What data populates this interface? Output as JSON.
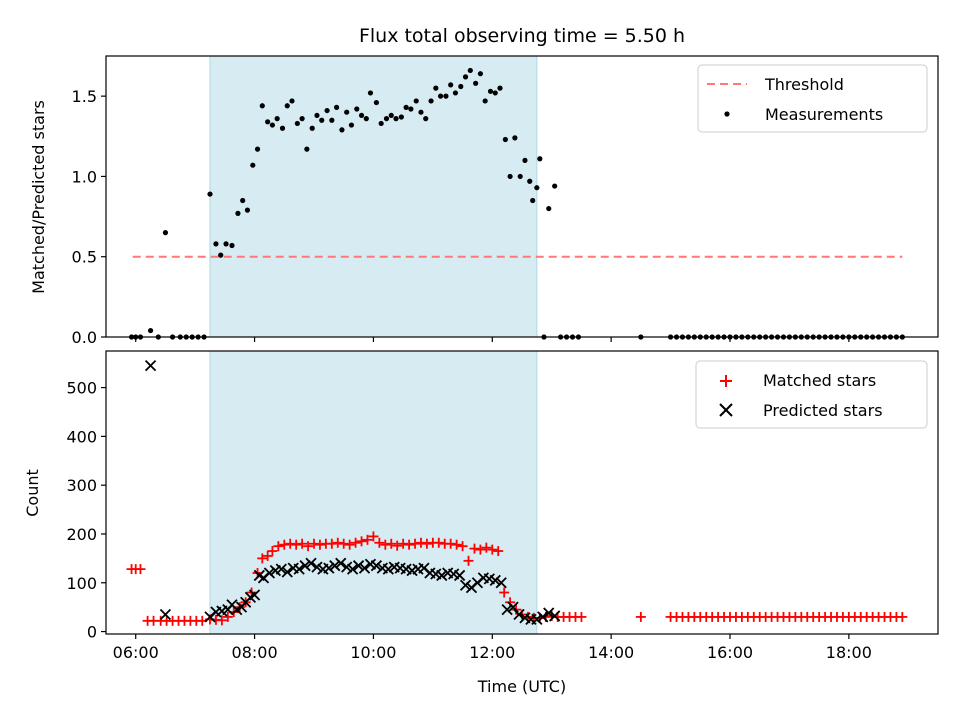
{
  "chart_data": {
    "type": "scatter",
    "title": "Flux total observing time = 5.50 h",
    "xlabel": "Time (UTC)",
    "x_range_hours": [
      5.5,
      19.5
    ],
    "x_ticks": [
      {
        "hour": 6,
        "label": "06:00"
      },
      {
        "hour": 8,
        "label": "08:00"
      },
      {
        "hour": 10,
        "label": "10:00"
      },
      {
        "hour": 12,
        "label": "12:00"
      },
      {
        "hour": 14,
        "label": "14:00"
      },
      {
        "hour": 16,
        "label": "16:00"
      },
      {
        "hour": 18,
        "label": "18:00"
      }
    ],
    "shaded_interval_hours": [
      7.25,
      12.75
    ],
    "shade_color": "#add8e6",
    "top": {
      "ylabel": "Matched/Predicted stars",
      "ylim": [
        0,
        1.75
      ],
      "y_ticks": [
        {
          "value": 0,
          "label": "0.0"
        },
        {
          "value": 0.5,
          "label": "0.5"
        },
        {
          "value": 1.0,
          "label": "1.0"
        },
        {
          "value": 1.5,
          "label": "1.5"
        }
      ],
      "threshold": {
        "name": "Threshold",
        "value": 0.5,
        "x_from_hours": 5.95,
        "x_to_hours": 18.9,
        "color": "#ff7777"
      },
      "measurements_name": "Measurements",
      "measurements_color": "#000000",
      "measurements": [
        [
          5.93,
          0
        ],
        [
          6.0,
          0
        ],
        [
          6.08,
          0
        ],
        [
          6.25,
          0.04
        ],
        [
          6.38,
          0
        ],
        [
          6.5,
          0.65
        ],
        [
          6.62,
          0
        ],
        [
          6.75,
          0
        ],
        [
          6.85,
          0
        ],
        [
          6.95,
          0
        ],
        [
          7.05,
          0
        ],
        [
          7.15,
          0
        ],
        [
          7.25,
          0.89
        ],
        [
          7.35,
          0.58
        ],
        [
          7.43,
          0.51
        ],
        [
          7.52,
          0.58
        ],
        [
          7.62,
          0.57
        ],
        [
          7.72,
          0.77
        ],
        [
          7.8,
          0.85
        ],
        [
          7.88,
          0.79
        ],
        [
          7.97,
          1.07
        ],
        [
          8.05,
          1.17
        ],
        [
          8.13,
          1.44
        ],
        [
          8.22,
          1.34
        ],
        [
          8.3,
          1.32
        ],
        [
          8.38,
          1.36
        ],
        [
          8.47,
          1.3
        ],
        [
          8.55,
          1.44
        ],
        [
          8.63,
          1.47
        ],
        [
          8.72,
          1.33
        ],
        [
          8.8,
          1.36
        ],
        [
          8.88,
          1.17
        ],
        [
          8.97,
          1.3
        ],
        [
          9.05,
          1.38
        ],
        [
          9.13,
          1.35
        ],
        [
          9.22,
          1.41
        ],
        [
          9.3,
          1.35
        ],
        [
          9.38,
          1.43
        ],
        [
          9.47,
          1.29
        ],
        [
          9.55,
          1.4
        ],
        [
          9.63,
          1.32
        ],
        [
          9.72,
          1.42
        ],
        [
          9.8,
          1.38
        ],
        [
          9.88,
          1.36
        ],
        [
          9.95,
          1.52
        ],
        [
          10.05,
          1.46
        ],
        [
          10.13,
          1.33
        ],
        [
          10.22,
          1.36
        ],
        [
          10.3,
          1.38
        ],
        [
          10.38,
          1.36
        ],
        [
          10.47,
          1.37
        ],
        [
          10.55,
          1.43
        ],
        [
          10.63,
          1.42
        ],
        [
          10.72,
          1.47
        ],
        [
          10.8,
          1.4
        ],
        [
          10.88,
          1.36
        ],
        [
          10.97,
          1.47
        ],
        [
          11.05,
          1.55
        ],
        [
          11.13,
          1.5
        ],
        [
          11.22,
          1.5
        ],
        [
          11.3,
          1.57
        ],
        [
          11.38,
          1.52
        ],
        [
          11.47,
          1.56
        ],
        [
          11.55,
          1.62
        ],
        [
          11.63,
          1.66
        ],
        [
          11.72,
          1.58
        ],
        [
          11.8,
          1.64
        ],
        [
          11.88,
          1.47
        ],
        [
          11.97,
          1.53
        ],
        [
          12.05,
          1.52
        ],
        [
          12.13,
          1.55
        ],
        [
          12.22,
          1.23
        ],
        [
          12.3,
          1.0
        ],
        [
          12.38,
          1.24
        ],
        [
          12.47,
          1.0
        ],
        [
          12.55,
          1.1
        ],
        [
          12.63,
          0.97
        ],
        [
          12.68,
          0.85
        ],
        [
          12.75,
          0.93
        ],
        [
          12.8,
          1.11
        ],
        [
          12.87,
          0
        ],
        [
          12.95,
          0.8
        ],
        [
          13.05,
          0.94
        ],
        [
          13.15,
          0
        ],
        [
          13.25,
          0
        ],
        [
          13.35,
          0
        ],
        [
          13.45,
          0
        ],
        [
          14.5,
          0
        ],
        [
          15.0,
          0
        ],
        [
          15.1,
          0
        ],
        [
          15.2,
          0
        ],
        [
          15.3,
          0
        ],
        [
          15.4,
          0
        ],
        [
          15.5,
          0
        ],
        [
          15.6,
          0
        ],
        [
          15.7,
          0
        ],
        [
          15.8,
          0
        ],
        [
          15.9,
          0
        ],
        [
          16.0,
          0
        ],
        [
          16.1,
          0
        ],
        [
          16.2,
          0
        ],
        [
          16.3,
          0
        ],
        [
          16.4,
          0
        ],
        [
          16.5,
          0
        ],
        [
          16.6,
          0
        ],
        [
          16.7,
          0
        ],
        [
          16.8,
          0
        ],
        [
          16.9,
          0
        ],
        [
          17.0,
          0
        ],
        [
          17.1,
          0
        ],
        [
          17.2,
          0
        ],
        [
          17.3,
          0
        ],
        [
          17.4,
          0
        ],
        [
          17.5,
          0
        ],
        [
          17.6,
          0
        ],
        [
          17.7,
          0
        ],
        [
          17.8,
          0
        ],
        [
          17.9,
          0
        ],
        [
          18.0,
          0
        ],
        [
          18.1,
          0
        ],
        [
          18.2,
          0
        ],
        [
          18.3,
          0
        ],
        [
          18.4,
          0
        ],
        [
          18.5,
          0
        ],
        [
          18.6,
          0
        ],
        [
          18.7,
          0
        ],
        [
          18.8,
          0
        ],
        [
          18.9,
          0
        ]
      ]
    },
    "bottom": {
      "ylabel": "Count",
      "ylim": [
        -5,
        575
      ],
      "y_ticks": [
        {
          "value": 0,
          "label": "0"
        },
        {
          "value": 100,
          "label": "100"
        },
        {
          "value": 200,
          "label": "200"
        },
        {
          "value": 300,
          "label": "300"
        },
        {
          "value": 400,
          "label": "400"
        },
        {
          "value": 500,
          "label": "500"
        }
      ],
      "matched_name": "Matched stars",
      "matched_color": "#ff0000",
      "predicted_name": "Predicted stars",
      "predicted_color": "#000000",
      "matched": [
        [
          5.93,
          128
        ],
        [
          6.0,
          128
        ],
        [
          6.08,
          128
        ],
        [
          6.2,
          22
        ],
        [
          6.3,
          22
        ],
        [
          6.42,
          22
        ],
        [
          6.52,
          22
        ],
        [
          6.62,
          22
        ],
        [
          6.72,
          22
        ],
        [
          6.82,
          22
        ],
        [
          6.92,
          22
        ],
        [
          7.02,
          22
        ],
        [
          7.12,
          22
        ],
        [
          7.25,
          25
        ],
        [
          7.35,
          24
        ],
        [
          7.45,
          23
        ],
        [
          7.55,
          30
        ],
        [
          7.65,
          40
        ],
        [
          7.75,
          50
        ],
        [
          7.85,
          60
        ],
        [
          7.95,
          80
        ],
        [
          8.05,
          120
        ],
        [
          8.13,
          150
        ],
        [
          8.22,
          155
        ],
        [
          8.3,
          165
        ],
        [
          8.4,
          175
        ],
        [
          8.5,
          178
        ],
        [
          8.6,
          180
        ],
        [
          8.7,
          178
        ],
        [
          8.8,
          180
        ],
        [
          8.9,
          175
        ],
        [
          9.0,
          180
        ],
        [
          9.1,
          178
        ],
        [
          9.2,
          180
        ],
        [
          9.3,
          180
        ],
        [
          9.4,
          182
        ],
        [
          9.5,
          180
        ],
        [
          9.6,
          178
        ],
        [
          9.7,
          182
        ],
        [
          9.8,
          185
        ],
        [
          9.9,
          188
        ],
        [
          10.0,
          195
        ],
        [
          10.1,
          182
        ],
        [
          10.2,
          178
        ],
        [
          10.3,
          180
        ],
        [
          10.4,
          176
        ],
        [
          10.5,
          180
        ],
        [
          10.6,
          178
        ],
        [
          10.7,
          180
        ],
        [
          10.8,
          182
        ],
        [
          10.9,
          180
        ],
        [
          11.0,
          182
        ],
        [
          11.1,
          182
        ],
        [
          11.2,
          180
        ],
        [
          11.3,
          180
        ],
        [
          11.4,
          178
        ],
        [
          11.5,
          175
        ],
        [
          11.6,
          145
        ],
        [
          11.7,
          170
        ],
        [
          11.8,
          168
        ],
        [
          11.9,
          172
        ],
        [
          12.0,
          168
        ],
        [
          12.1,
          165
        ],
        [
          12.2,
          80
        ],
        [
          12.3,
          60
        ],
        [
          12.4,
          45
        ],
        [
          12.5,
          35
        ],
        [
          12.6,
          30
        ],
        [
          12.7,
          28
        ],
        [
          12.8,
          28
        ],
        [
          12.9,
          30
        ],
        [
          13.0,
          32
        ],
        [
          13.1,
          30
        ],
        [
          13.2,
          30
        ],
        [
          13.3,
          30
        ],
        [
          13.4,
          30
        ],
        [
          13.5,
          30
        ],
        [
          14.5,
          30
        ],
        [
          15.0,
          30
        ],
        [
          15.1,
          30
        ],
        [
          15.2,
          30
        ],
        [
          15.3,
          30
        ],
        [
          15.4,
          30
        ],
        [
          15.5,
          30
        ],
        [
          15.6,
          30
        ],
        [
          15.7,
          30
        ],
        [
          15.8,
          30
        ],
        [
          15.9,
          30
        ],
        [
          16.0,
          30
        ],
        [
          16.1,
          30
        ],
        [
          16.2,
          30
        ],
        [
          16.3,
          30
        ],
        [
          16.4,
          30
        ],
        [
          16.5,
          30
        ],
        [
          16.6,
          30
        ],
        [
          16.7,
          30
        ],
        [
          16.8,
          30
        ],
        [
          16.9,
          30
        ],
        [
          17.0,
          30
        ],
        [
          17.1,
          30
        ],
        [
          17.2,
          30
        ],
        [
          17.3,
          30
        ],
        [
          17.4,
          30
        ],
        [
          17.5,
          30
        ],
        [
          17.6,
          30
        ],
        [
          17.7,
          30
        ],
        [
          17.8,
          30
        ],
        [
          17.9,
          30
        ],
        [
          18.0,
          30
        ],
        [
          18.1,
          30
        ],
        [
          18.2,
          30
        ],
        [
          18.3,
          30
        ],
        [
          18.4,
          30
        ],
        [
          18.5,
          30
        ],
        [
          18.6,
          30
        ],
        [
          18.7,
          30
        ],
        [
          18.8,
          30
        ],
        [
          18.9,
          30
        ]
      ],
      "predicted": [
        [
          6.25,
          545
        ],
        [
          6.5,
          35
        ],
        [
          7.25,
          30
        ],
        [
          7.35,
          40
        ],
        [
          7.45,
          42
        ],
        [
          7.55,
          45
        ],
        [
          7.62,
          55
        ],
        [
          7.7,
          45
        ],
        [
          7.78,
          50
        ],
        [
          7.85,
          60
        ],
        [
          7.93,
          70
        ],
        [
          8.0,
          75
        ],
        [
          8.08,
          115
        ],
        [
          8.15,
          110
        ],
        [
          8.25,
          120
        ],
        [
          8.35,
          125
        ],
        [
          8.45,
          128
        ],
        [
          8.55,
          122
        ],
        [
          8.65,
          130
        ],
        [
          8.75,
          128
        ],
        [
          8.85,
          135
        ],
        [
          8.95,
          140
        ],
        [
          9.05,
          132
        ],
        [
          9.15,
          128
        ],
        [
          9.25,
          130
        ],
        [
          9.35,
          135
        ],
        [
          9.45,
          140
        ],
        [
          9.55,
          132
        ],
        [
          9.65,
          128
        ],
        [
          9.75,
          135
        ],
        [
          9.85,
          130
        ],
        [
          9.95,
          138
        ],
        [
          10.05,
          135
        ],
        [
          10.15,
          130
        ],
        [
          10.25,
          128
        ],
        [
          10.35,
          132
        ],
        [
          10.45,
          130
        ],
        [
          10.55,
          128
        ],
        [
          10.65,
          125
        ],
        [
          10.75,
          128
        ],
        [
          10.85,
          130
        ],
        [
          10.95,
          120
        ],
        [
          11.05,
          118
        ],
        [
          11.15,
          115
        ],
        [
          11.25,
          120
        ],
        [
          11.35,
          118
        ],
        [
          11.45,
          115
        ],
        [
          11.55,
          95
        ],
        [
          11.65,
          90
        ],
        [
          11.75,
          100
        ],
        [
          11.85,
          110
        ],
        [
          11.95,
          108
        ],
        [
          12.05,
          105
        ],
        [
          12.15,
          100
        ],
        [
          12.25,
          45
        ],
        [
          12.35,
          50
        ],
        [
          12.45,
          35
        ],
        [
          12.55,
          28
        ],
        [
          12.65,
          25
        ],
        [
          12.75,
          25
        ],
        [
          12.85,
          30
        ],
        [
          12.95,
          38
        ],
        [
          13.05,
          32
        ]
      ]
    }
  }
}
